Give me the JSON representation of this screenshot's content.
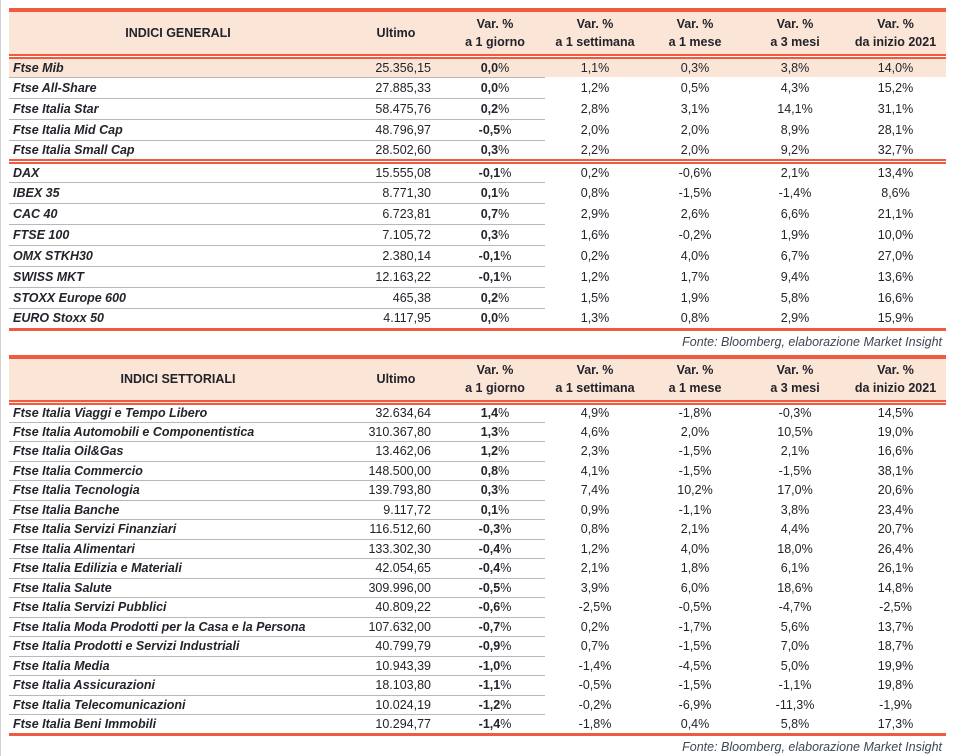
{
  "colors": {
    "accent": "#ee5b40",
    "header_bg": "#fbe5d6",
    "highlight_bg": "#fbe5d6",
    "separator": "#b8b8b8",
    "text": "#23232b",
    "fonte": "#3e4753"
  },
  "tables": [
    {
      "title": "INDICI GENERALI",
      "ultimo_label": "Ultimo",
      "columns": [
        {
          "line1": "Var. %",
          "line2": "a 1 giorno"
        },
        {
          "line1": "Var. %",
          "line2": "a 1 settimana"
        },
        {
          "line1": "Var. %",
          "line2": "a 1 mese"
        },
        {
          "line1": "Var. %",
          "line2": "a 3 mesi"
        },
        {
          "line1": "Var. %",
          "line2": "da inizio 2021"
        }
      ],
      "groups": [
        {
          "rows": [
            {
              "name": "Ftse Mib",
              "ultimo": "25.356,15",
              "d1": "0,0%",
              "w1": "1,1%",
              "m1": "0,3%",
              "m3": "3,8%",
              "ytd": "14,0%",
              "highlight": true
            },
            {
              "name": "Ftse All-Share",
              "ultimo": "27.885,33",
              "d1": "0,0%",
              "w1": "1,2%",
              "m1": "0,5%",
              "m3": "4,3%",
              "ytd": "15,2%"
            },
            {
              "name": "Ftse Italia Star",
              "ultimo": "58.475,76",
              "d1": "0,2%",
              "w1": "2,8%",
              "m1": "3,1%",
              "m3": "14,1%",
              "ytd": "31,1%"
            },
            {
              "name": "Ftse Italia Mid Cap",
              "ultimo": "48.796,97",
              "d1": "-0,5%",
              "w1": "2,0%",
              "m1": "2,0%",
              "m3": "8,9%",
              "ytd": "28,1%"
            },
            {
              "name": "Ftse Italia Small Cap",
              "ultimo": "28.502,60",
              "d1": "0,3%",
              "w1": "2,2%",
              "m1": "2,0%",
              "m3": "9,2%",
              "ytd": "32,7%"
            }
          ]
        },
        {
          "rows": [
            {
              "name": "DAX",
              "ultimo": "15.555,08",
              "d1": "-0,1%",
              "w1": "0,2%",
              "m1": "-0,6%",
              "m3": "2,1%",
              "ytd": "13,4%"
            },
            {
              "name": "IBEX 35",
              "ultimo": "8.771,30",
              "d1": "0,1%",
              "w1": "0,8%",
              "m1": "-1,5%",
              "m3": "-1,4%",
              "ytd": "8,6%"
            },
            {
              "name": "CAC 40",
              "ultimo": "6.723,81",
              "d1": "0,7%",
              "w1": "2,9%",
              "m1": "2,6%",
              "m3": "6,6%",
              "ytd": "21,1%"
            },
            {
              "name": "FTSE 100",
              "ultimo": "7.105,72",
              "d1": "0,3%",
              "w1": "1,6%",
              "m1": "-0,2%",
              "m3": "1,9%",
              "ytd": "10,0%"
            },
            {
              "name": "OMX STKH30",
              "ultimo": "2.380,14",
              "d1": "-0,1%",
              "w1": "0,2%",
              "m1": "4,0%",
              "m3": "6,7%",
              "ytd": "27,0%"
            },
            {
              "name": "SWISS MKT",
              "ultimo": "12.163,22",
              "d1": "-0,1%",
              "w1": "1,2%",
              "m1": "1,7%",
              "m3": "9,4%",
              "ytd": "13,6%"
            },
            {
              "name": "STOXX Europe 600",
              "ultimo": "465,38",
              "d1": "0,2%",
              "w1": "1,5%",
              "m1": "1,9%",
              "m3": "5,8%",
              "ytd": "16,6%"
            },
            {
              "name": "EURO Stoxx 50",
              "ultimo": "4.117,95",
              "d1": "0,0%",
              "w1": "1,3%",
              "m1": "0,8%",
              "m3": "2,9%",
              "ytd": "15,9%"
            }
          ]
        }
      ],
      "fonte": "Fonte: Bloomberg, elaborazione Market Insight"
    },
    {
      "title": "INDICI SETTORIALI",
      "ultimo_label": "Ultimo",
      "columns": [
        {
          "line1": "Var. %",
          "line2": "a 1 giorno"
        },
        {
          "line1": "Var. %",
          "line2": "a 1 settimana"
        },
        {
          "line1": "Var. %",
          "line2": "a 1 mese"
        },
        {
          "line1": "Var. %",
          "line2": "a 3 mesi"
        },
        {
          "line1": "Var. %",
          "line2": "da inizio 2021"
        }
      ],
      "groups": [
        {
          "rows": [
            {
              "name": "Ftse Italia Viaggi e Tempo Libero",
              "ultimo": "32.634,64",
              "d1": "1,4%",
              "w1": "4,9%",
              "m1": "-1,8%",
              "m3": "-0,3%",
              "ytd": "14,5%"
            },
            {
              "name": "Ftse Italia Automobili e Componentistica",
              "ultimo": "310.367,80",
              "d1": "1,3%",
              "w1": "4,6%",
              "m1": "2,0%",
              "m3": "10,5%",
              "ytd": "19,0%"
            },
            {
              "name": "Ftse Italia Oil&Gas",
              "ultimo": "13.462,06",
              "d1": "1,2%",
              "w1": "2,3%",
              "m1": "-1,5%",
              "m3": "2,1%",
              "ytd": "16,6%"
            },
            {
              "name": "Ftse Italia Commercio",
              "ultimo": "148.500,00",
              "d1": "0,8%",
              "w1": "4,1%",
              "m1": "-1,5%",
              "m3": "-1,5%",
              "ytd": "38,1%"
            },
            {
              "name": "Ftse Italia Tecnologia",
              "ultimo": "139.793,80",
              "d1": "0,3%",
              "w1": "7,4%",
              "m1": "10,2%",
              "m3": "17,0%",
              "ytd": "20,6%"
            },
            {
              "name": "Ftse Italia Banche",
              "ultimo": "9.117,72",
              "d1": "0,1%",
              "w1": "0,9%",
              "m1": "-1,1%",
              "m3": "3,8%",
              "ytd": "23,4%"
            },
            {
              "name": "Ftse Italia Servizi Finanziari",
              "ultimo": "116.512,60",
              "d1": "-0,3%",
              "w1": "0,8%",
              "m1": "2,1%",
              "m3": "4,4%",
              "ytd": "20,7%"
            },
            {
              "name": "Ftse Italia Alimentari",
              "ultimo": "133.302,30",
              "d1": "-0,4%",
              "w1": "1,2%",
              "m1": "4,0%",
              "m3": "18,0%",
              "ytd": "26,4%"
            },
            {
              "name": "Ftse Italia Edilizia e Materiali",
              "ultimo": "42.054,65",
              "d1": "-0,4%",
              "w1": "2,1%",
              "m1": "1,8%",
              "m3": "6,1%",
              "ytd": "26,1%"
            },
            {
              "name": "Ftse Italia Salute",
              "ultimo": "309.996,00",
              "d1": "-0,5%",
              "w1": "3,9%",
              "m1": "6,0%",
              "m3": "18,6%",
              "ytd": "14,8%"
            },
            {
              "name": "Ftse Italia Servizi Pubblici",
              "ultimo": "40.809,22",
              "d1": "-0,6%",
              "w1": "-2,5%",
              "m1": "-0,5%",
              "m3": "-4,7%",
              "ytd": "-2,5%"
            },
            {
              "name": "Ftse Italia Moda Prodotti per la Casa e la Persona",
              "ultimo": "107.632,00",
              "d1": "-0,7%",
              "w1": "0,2%",
              "m1": "-1,7%",
              "m3": "5,6%",
              "ytd": "13,7%"
            },
            {
              "name": "Ftse Italia Prodotti e Servizi Industriali",
              "ultimo": "40.799,79",
              "d1": "-0,9%",
              "w1": "0,7%",
              "m1": "-1,5%",
              "m3": "7,0%",
              "ytd": "18,7%"
            },
            {
              "name": "Ftse Italia Media",
              "ultimo": "10.943,39",
              "d1": "-1,0%",
              "w1": "-1,4%",
              "m1": "-4,5%",
              "m3": "5,0%",
              "ytd": "19,9%"
            },
            {
              "name": "Ftse Italia Assicurazioni",
              "ultimo": "18.103,80",
              "d1": "-1,1%",
              "w1": "-0,5%",
              "m1": "-1,5%",
              "m3": "-1,1%",
              "ytd": "19,8%"
            },
            {
              "name": "Ftse Italia Telecomunicazioni",
              "ultimo": "10.024,19",
              "d1": "-1,2%",
              "w1": "-0,2%",
              "m1": "-6,9%",
              "m3": "-11,3%",
              "ytd": "-1,9%"
            },
            {
              "name": "Ftse Italia Beni Immobili",
              "ultimo": "10.294,77",
              "d1": "-1,4%",
              "w1": "-1,8%",
              "m1": "0,4%",
              "m3": "5,8%",
              "ytd": "17,3%"
            }
          ]
        }
      ],
      "fonte": "Fonte: Bloomberg, elaborazione Market Insight"
    }
  ]
}
